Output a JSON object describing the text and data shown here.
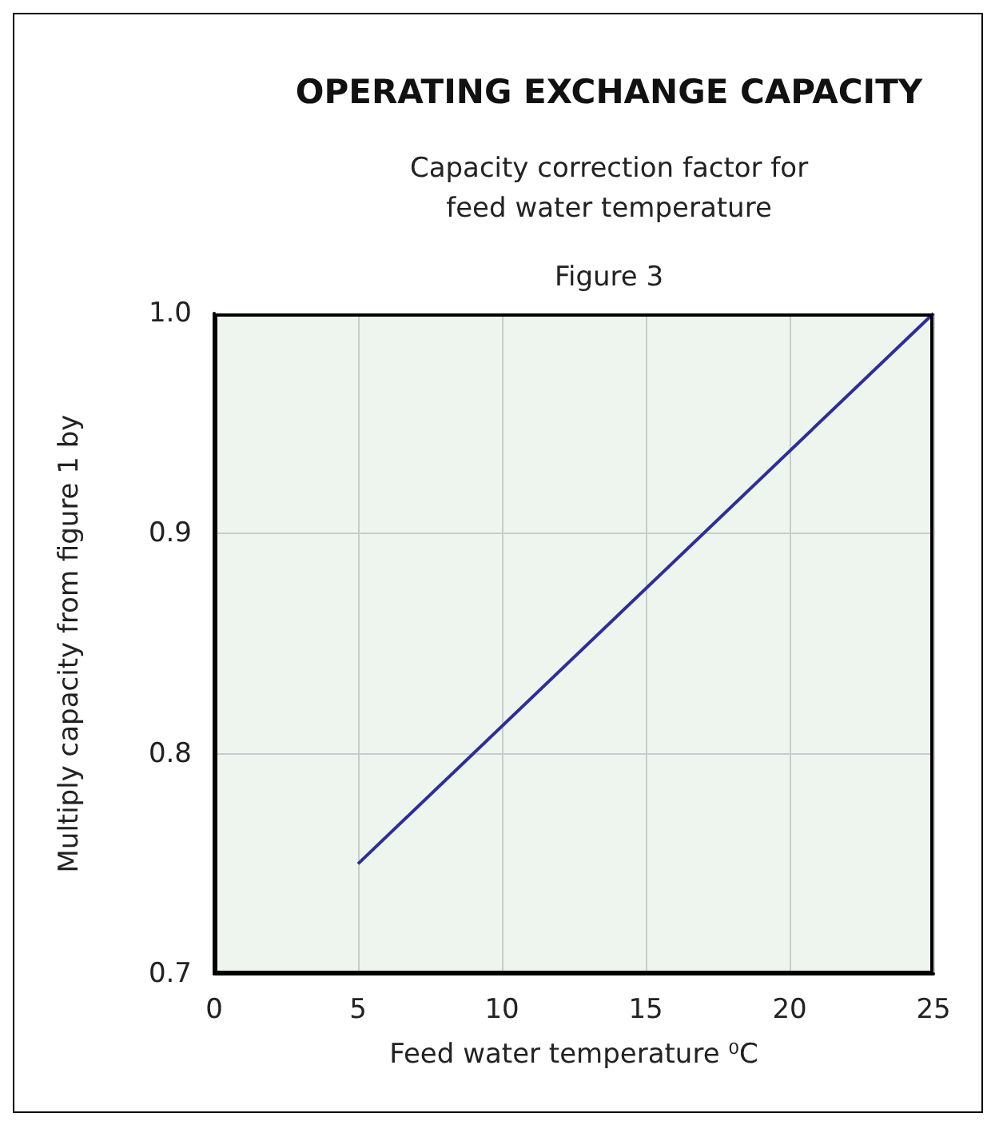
{
  "chart_data": {
    "type": "line",
    "title": "OPERATING EXCHANGE CAPACITY",
    "subtitle": "Capacity correction factor for\nfeed water temperature",
    "annotations": [
      "Figure 3"
    ],
    "xlabel": "Feed water temperature ⁰C",
    "ylabel": "Multiply capacity from figure 1 by",
    "x": [
      5,
      25
    ],
    "series": [
      {
        "color": "#2e2e96",
        "values": [
          0.75,
          1.0
        ]
      }
    ],
    "xlim": [
      0,
      25
    ],
    "xticks": [
      0,
      5,
      10,
      15,
      20,
      25
    ],
    "ylim": [
      0.7,
      1.0
    ],
    "yticks": [
      0.7,
      0.8,
      0.9,
      {
        "value": 1,
        "label": "1.0"
      }
    ],
    "grid": true,
    "marker": "none",
    "line_style": "solid"
  }
}
